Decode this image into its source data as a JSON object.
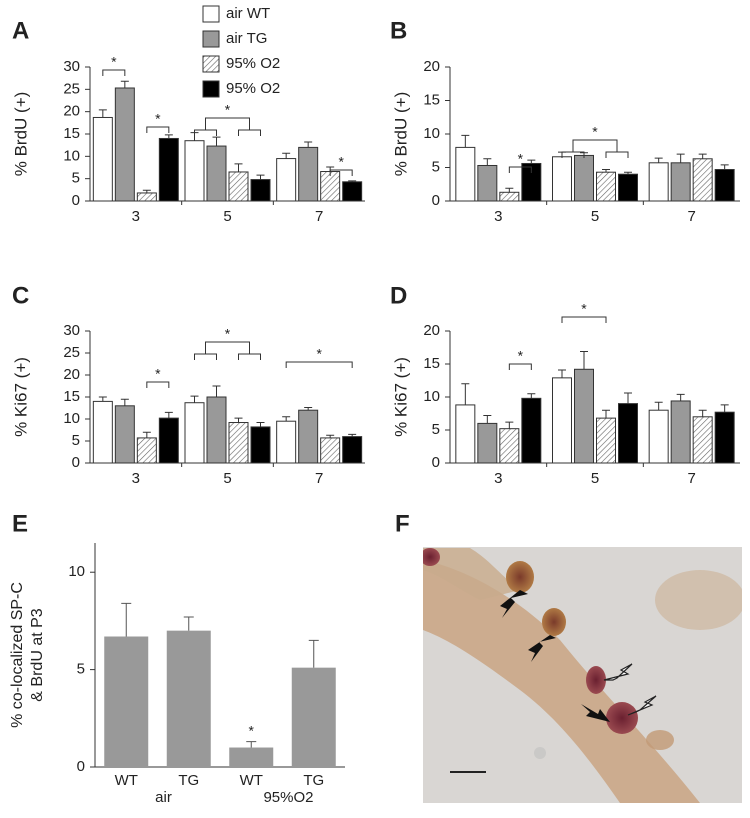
{
  "chart_data": [
    {
      "type": "grouped-bar",
      "panel_label": "A",
      "y_label": "% BrdU (+)",
      "categories": [
        "3",
        "5",
        "7"
      ],
      "ylim": [
        0,
        30
      ],
      "yticks": [
        0,
        5,
        10,
        15,
        20,
        25,
        30
      ],
      "series": [
        {
          "name": "air WT",
          "color": "#ffffff",
          "values": [
            18.7,
            13.5,
            9.5
          ],
          "errors": [
            1.7,
            1.8,
            1.2
          ]
        },
        {
          "name": "air TG",
          "color": "#999999",
          "values": [
            25.3,
            12.3,
            12.0
          ],
          "errors": [
            1.5,
            2.0,
            1.2
          ]
        },
        {
          "name": "95% O2",
          "color": "#ffffff",
          "hatch": true,
          "values": [
            1.8,
            6.5,
            6.6
          ],
          "errors": [
            0.6,
            1.8,
            1.0
          ]
        },
        {
          "name": "95% O2",
          "color": "#000000",
          "values": [
            14.0,
            4.8,
            4.3
          ],
          "errors": [
            0.8,
            1.0,
            0.2
          ]
        }
      ],
      "annotations": [
        "*",
        "*",
        "*",
        "*"
      ]
    },
    {
      "type": "grouped-bar",
      "panel_label": "B",
      "y_label": "% BrdU (+)",
      "categories": [
        "3",
        "5",
        "7"
      ],
      "ylim": [
        0,
        20
      ],
      "yticks": [
        0,
        5,
        10,
        15,
        20
      ],
      "series": [
        {
          "color": "#ffffff",
          "values": [
            8.0,
            6.6,
            5.7
          ],
          "errors": [
            1.8,
            0.7,
            0.7
          ]
        },
        {
          "color": "#999999",
          "values": [
            5.3,
            6.8,
            5.7
          ],
          "errors": [
            1.0,
            0.4,
            1.3
          ]
        },
        {
          "color": "#ffffff",
          "hatch": true,
          "values": [
            1.3,
            4.3,
            6.3
          ],
          "errors": [
            0.6,
            0.4,
            0.7
          ]
        },
        {
          "color": "#000000",
          "values": [
            5.6,
            4.0,
            4.7
          ],
          "errors": [
            0.5,
            0.3,
            0.7
          ]
        }
      ],
      "annotations": [
        "*",
        "*"
      ]
    },
    {
      "type": "grouped-bar",
      "panel_label": "C",
      "y_label": "% Ki67 (+)",
      "categories": [
        "3",
        "5",
        "7"
      ],
      "ylim": [
        0,
        30
      ],
      "yticks": [
        0,
        5,
        10,
        15,
        20,
        25,
        30
      ],
      "series": [
        {
          "color": "#ffffff",
          "values": [
            14.0,
            13.7,
            9.5
          ],
          "errors": [
            1.0,
            1.5,
            1.0
          ]
        },
        {
          "color": "#999999",
          "values": [
            13.0,
            15.0,
            12.0
          ],
          "errors": [
            1.5,
            2.5,
            0.6
          ]
        },
        {
          "color": "#ffffff",
          "hatch": true,
          "values": [
            5.7,
            9.2,
            5.7
          ],
          "errors": [
            1.3,
            1.0,
            0.6
          ]
        },
        {
          "color": "#000000",
          "values": [
            10.2,
            8.2,
            6.0
          ],
          "errors": [
            1.3,
            1.0,
            0.5
          ]
        }
      ],
      "annotations": [
        "*",
        "*",
        "*"
      ]
    },
    {
      "type": "grouped-bar",
      "panel_label": "D",
      "y_label": "% Ki67 (+)",
      "categories": [
        "3",
        "5",
        "7"
      ],
      "ylim": [
        0,
        20
      ],
      "yticks": [
        0,
        5,
        10,
        15,
        20
      ],
      "series": [
        {
          "color": "#ffffff",
          "values": [
            8.8,
            12.9,
            8.0
          ],
          "errors": [
            3.2,
            1.2,
            1.2
          ]
        },
        {
          "color": "#999999",
          "values": [
            6.0,
            14.2,
            9.4
          ],
          "errors": [
            1.2,
            2.7,
            1.0
          ]
        },
        {
          "color": "#ffffff",
          "hatch": true,
          "values": [
            5.2,
            6.8,
            7.0
          ],
          "errors": [
            1.0,
            1.2,
            1.0
          ]
        },
        {
          "color": "#000000",
          "values": [
            9.8,
            9.0,
            7.7
          ],
          "errors": [
            0.7,
            1.6,
            1.1
          ]
        }
      ],
      "annotations": [
        "*",
        "*"
      ]
    },
    {
      "type": "bar",
      "panel_label": "E",
      "y_label": [
        "% co-localized SP-C",
        "& BrdU at P3"
      ],
      "categories": [
        "WT",
        "TG",
        "WT",
        "TG"
      ],
      "groups": [
        "air",
        "95%O2"
      ],
      "color": "#999999",
      "values": [
        6.7,
        7.0,
        1.0,
        5.1
      ],
      "errors": [
        1.7,
        0.7,
        0.3,
        1.4
      ],
      "ylim": [
        0,
        11.5
      ],
      "yticks": [
        0,
        5,
        10
      ],
      "annotations": [
        "*"
      ]
    }
  ],
  "image_panel": {
    "label": "F"
  }
}
